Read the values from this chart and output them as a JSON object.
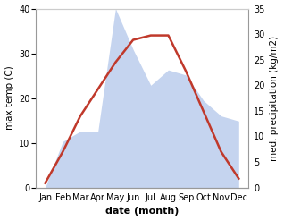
{
  "months": [
    "Jan",
    "Feb",
    "Mar",
    "Apr",
    "May",
    "Jun",
    "Jul",
    "Aug",
    "Sep",
    "Oct",
    "Nov",
    "Dec"
  ],
  "temperature": [
    1,
    8,
    16,
    22,
    28,
    33,
    34,
    34,
    26,
    17,
    8,
    2
  ],
  "precipitation": [
    0,
    9,
    11,
    11,
    35,
    27,
    20,
    23,
    22,
    17,
    14,
    13
  ],
  "temp_color": "#c0392b",
  "precip_color": "#c5d4ef",
  "background_color": "#ffffff",
  "xlabel": "date (month)",
  "ylabel_left": "max temp (C)",
  "ylabel_right": "med. precipitation (kg/m2)",
  "ylim_left": [
    0,
    40
  ],
  "ylim_right": [
    0,
    35
  ],
  "yticks_left": [
    0,
    10,
    20,
    30,
    40
  ],
  "yticks_right": [
    0,
    5,
    10,
    15,
    20,
    25,
    30,
    35
  ],
  "temp_linewidth": 1.8,
  "xlabel_fontsize": 8,
  "ylabel_fontsize": 7.5,
  "tick_fontsize": 7
}
